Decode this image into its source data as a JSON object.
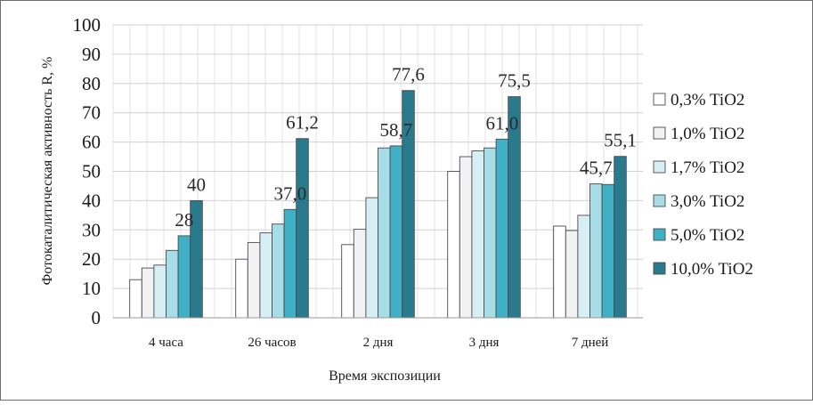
{
  "chart_data": {
    "type": "bar",
    "title": "",
    "xlabel": "Время экспозиции",
    "ylabel": "Фотокаталитическая активность R, %",
    "ylim": [
      0,
      100
    ],
    "yticks": [
      0,
      10,
      20,
      30,
      40,
      50,
      60,
      70,
      80,
      90,
      100
    ],
    "grid": true,
    "legend_position": "right",
    "categories": [
      "4 часа",
      "26 часов",
      "2 дня",
      "3 дня",
      "7 дней"
    ],
    "series": [
      {
        "name": "0,3% TiO2",
        "color": "#ffffff",
        "values": [
          13,
          20,
          25,
          50,
          31.3
        ]
      },
      {
        "name": "1,0% TiO2",
        "color": "#f2f2f5",
        "values": [
          17,
          25.7,
          30.2,
          55,
          29.8
        ]
      },
      {
        "name": "1,7% TiO2",
        "color": "#d6eef4",
        "values": [
          18,
          29,
          41,
          57,
          35
        ]
      },
      {
        "name": "3,0% TiO2",
        "color": "#a6dde7",
        "values": [
          23,
          32,
          58,
          58,
          45.7
        ]
      },
      {
        "name": "5,0% TiO2",
        "color": "#3fb0c6",
        "values": [
          28,
          37,
          58.7,
          61,
          45.5
        ]
      },
      {
        "name": "10,0% TiO2",
        "color": "#2a7a8e",
        "values": [
          40,
          61.2,
          77.6,
          75.5,
          55.1
        ]
      }
    ],
    "annotations": [
      {
        "category": 0,
        "series": 4,
        "text": "28"
      },
      {
        "category": 0,
        "series": 5,
        "text": "40"
      },
      {
        "category": 1,
        "series": 4,
        "text": "37,0"
      },
      {
        "category": 1,
        "series": 5,
        "text": "61,2"
      },
      {
        "category": 2,
        "series": 4,
        "text": "58,7"
      },
      {
        "category": 2,
        "series": 5,
        "text": "77,6"
      },
      {
        "category": 3,
        "series": 4,
        "text": "61,0"
      },
      {
        "category": 3,
        "series": 5,
        "text": "75,5"
      },
      {
        "category": 4,
        "series": 3,
        "text": "45,7"
      },
      {
        "category": 4,
        "series": 5,
        "text": "55,1"
      }
    ]
  }
}
